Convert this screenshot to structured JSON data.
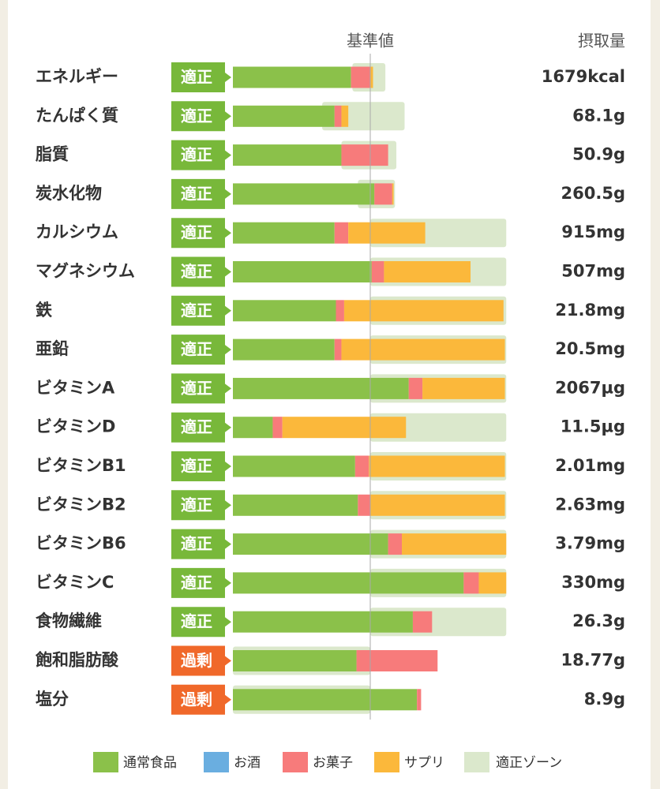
{
  "chart_data": {
    "type": "bar",
    "reference_label": "基準値",
    "amount_header": "摂取量",
    "reference": 100,
    "xlim": [
      0,
      200
    ],
    "categories": [
      "エネルギー",
      "たんぱく質",
      "脂質",
      "炭水化物",
      "カルシウム",
      "マグネシウム",
      "鉄",
      "亜鉛",
      "ビタミンA",
      "ビタミンD",
      "ビタミンB1",
      "ビタミンB2",
      "ビタミンB6",
      "ビタミンC",
      "食物繊維",
      "飽和脂肪酸",
      "塩分"
    ],
    "status": [
      "適正",
      "適正",
      "適正",
      "適正",
      "適正",
      "適正",
      "適正",
      "適正",
      "適正",
      "適正",
      "適正",
      "適正",
      "適正",
      "適正",
      "適正",
      "過剰",
      "過剰"
    ],
    "status_colors": [
      "#78b83a",
      "#78b83a",
      "#78b83a",
      "#78b83a",
      "#78b83a",
      "#78b83a",
      "#78b83a",
      "#78b83a",
      "#78b83a",
      "#78b83a",
      "#78b83a",
      "#78b83a",
      "#78b83a",
      "#78b83a",
      "#78b83a",
      "#f0682a",
      "#f0682a"
    ],
    "amounts": [
      "1679kcal",
      "68.1g",
      "50.9g",
      "260.5g",
      "915mg",
      "507mg",
      "21.8mg",
      "20.5mg",
      "2067µg",
      "11.5µg",
      "2.01mg",
      "2.63mg",
      "3.79mg",
      "330mg",
      "26.3g",
      "18.77g",
      "8.9g"
    ],
    "series": [
      {
        "name": "通常食品",
        "color": "#8bc14a",
        "values": [
          86,
          74,
          79,
          103,
          74,
          101,
          75,
          74,
          128,
          29,
          89,
          91,
          113,
          168,
          131,
          90,
          134
        ]
      },
      {
        "name": "お酒",
        "color": "#6aaee0",
        "values": [
          0,
          0,
          0,
          0,
          0,
          0,
          0,
          0,
          0,
          0,
          0,
          0,
          0,
          0,
          0,
          0,
          0
        ]
      },
      {
        "name": "お菓子",
        "color": "#f77b7b",
        "values": [
          14,
          5,
          34,
          13,
          10,
          9,
          6,
          5,
          10,
          7,
          10,
          9,
          10,
          11,
          14,
          59,
          3
        ]
      },
      {
        "name": "サプリ",
        "color": "#fbb83b",
        "values": [
          2,
          5,
          0,
          1,
          56,
          63,
          116,
          119,
          60,
          90,
          99,
          98,
          76,
          20,
          0,
          0,
          0
        ]
      }
    ],
    "zone_name": "適正ゾーン",
    "zone_color": "#dbe8cc",
    "zones": [
      [
        87,
        111
      ],
      [
        65,
        125
      ],
      [
        79,
        119
      ],
      [
        91,
        118
      ],
      [
        100,
        199
      ],
      [
        100,
        199
      ],
      [
        100,
        199
      ],
      [
        100,
        199
      ],
      [
        100,
        199
      ],
      [
        100,
        199
      ],
      [
        100,
        199
      ],
      [
        100,
        199
      ],
      [
        100,
        199
      ],
      [
        100,
        199
      ],
      [
        100,
        199
      ],
      [
        0,
        100
      ],
      [
        0,
        100
      ]
    ]
  }
}
